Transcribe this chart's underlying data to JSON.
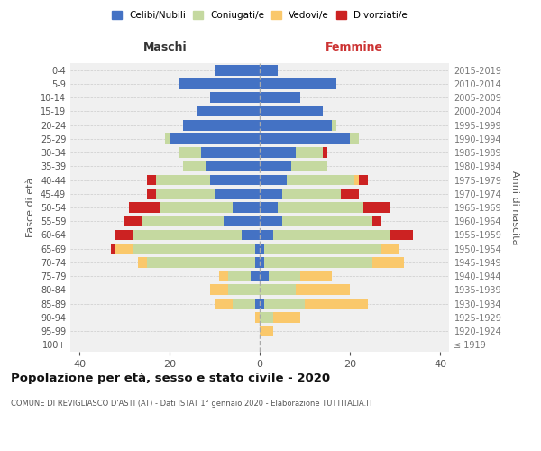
{
  "age_groups": [
    "100+",
    "95-99",
    "90-94",
    "85-89",
    "80-84",
    "75-79",
    "70-74",
    "65-69",
    "60-64",
    "55-59",
    "50-54",
    "45-49",
    "40-44",
    "35-39",
    "30-34",
    "25-29",
    "20-24",
    "15-19",
    "10-14",
    "5-9",
    "0-4"
  ],
  "birth_years": [
    "≤ 1919",
    "1920-1924",
    "1925-1929",
    "1930-1934",
    "1935-1939",
    "1940-1944",
    "1945-1949",
    "1950-1954",
    "1955-1959",
    "1960-1964",
    "1965-1969",
    "1970-1974",
    "1975-1979",
    "1980-1984",
    "1985-1989",
    "1990-1994",
    "1995-1999",
    "2000-2004",
    "2005-2009",
    "2010-2014",
    "2015-2019"
  ],
  "maschi": {
    "celibi": [
      0,
      0,
      0,
      1,
      0,
      2,
      1,
      1,
      4,
      8,
      6,
      10,
      11,
      12,
      13,
      20,
      17,
      14,
      11,
      18,
      10
    ],
    "coniugati": [
      0,
      0,
      0,
      5,
      7,
      5,
      24,
      27,
      24,
      18,
      16,
      13,
      12,
      5,
      5,
      1,
      0,
      0,
      0,
      0,
      0
    ],
    "vedovi": [
      0,
      0,
      1,
      4,
      4,
      2,
      2,
      4,
      0,
      0,
      0,
      0,
      0,
      0,
      0,
      0,
      0,
      0,
      0,
      0,
      0
    ],
    "divorziati": [
      0,
      0,
      0,
      0,
      0,
      0,
      0,
      1,
      4,
      4,
      7,
      2,
      2,
      0,
      0,
      0,
      0,
      0,
      0,
      0,
      0
    ]
  },
  "femmine": {
    "nubili": [
      0,
      0,
      0,
      1,
      0,
      2,
      1,
      1,
      3,
      5,
      4,
      5,
      6,
      7,
      8,
      20,
      16,
      14,
      9,
      17,
      4
    ],
    "coniugate": [
      0,
      0,
      3,
      9,
      8,
      7,
      24,
      26,
      26,
      20,
      19,
      13,
      15,
      8,
      6,
      2,
      1,
      0,
      0,
      0,
      0
    ],
    "vedove": [
      0,
      3,
      6,
      14,
      12,
      7,
      7,
      4,
      0,
      0,
      0,
      0,
      1,
      0,
      0,
      0,
      0,
      0,
      0,
      0,
      0
    ],
    "divorziate": [
      0,
      0,
      0,
      0,
      0,
      0,
      0,
      0,
      5,
      2,
      6,
      4,
      2,
      0,
      1,
      0,
      0,
      0,
      0,
      0,
      0
    ]
  },
  "colors": {
    "celibi_nubili": "#4472C4",
    "coniugati": "#C5D9A0",
    "vedovi": "#FAC86B",
    "divorziati": "#CC2222"
  },
  "xlim": 42,
  "title": "Popolazione per età, sesso e stato civile - 2020",
  "subtitle": "COMUNE DI REVIGLIASCO D'ASTI (AT) - Dati ISTAT 1° gennaio 2020 - Elaborazione TUTTITALIA.IT",
  "xlabel_left": "Maschi",
  "xlabel_right": "Femmine",
  "ylabel_left": "Fasce di età",
  "ylabel_right": "Anni di nascita",
  "bg_color": "#f0f0f0",
  "grid_color": "#cccccc"
}
